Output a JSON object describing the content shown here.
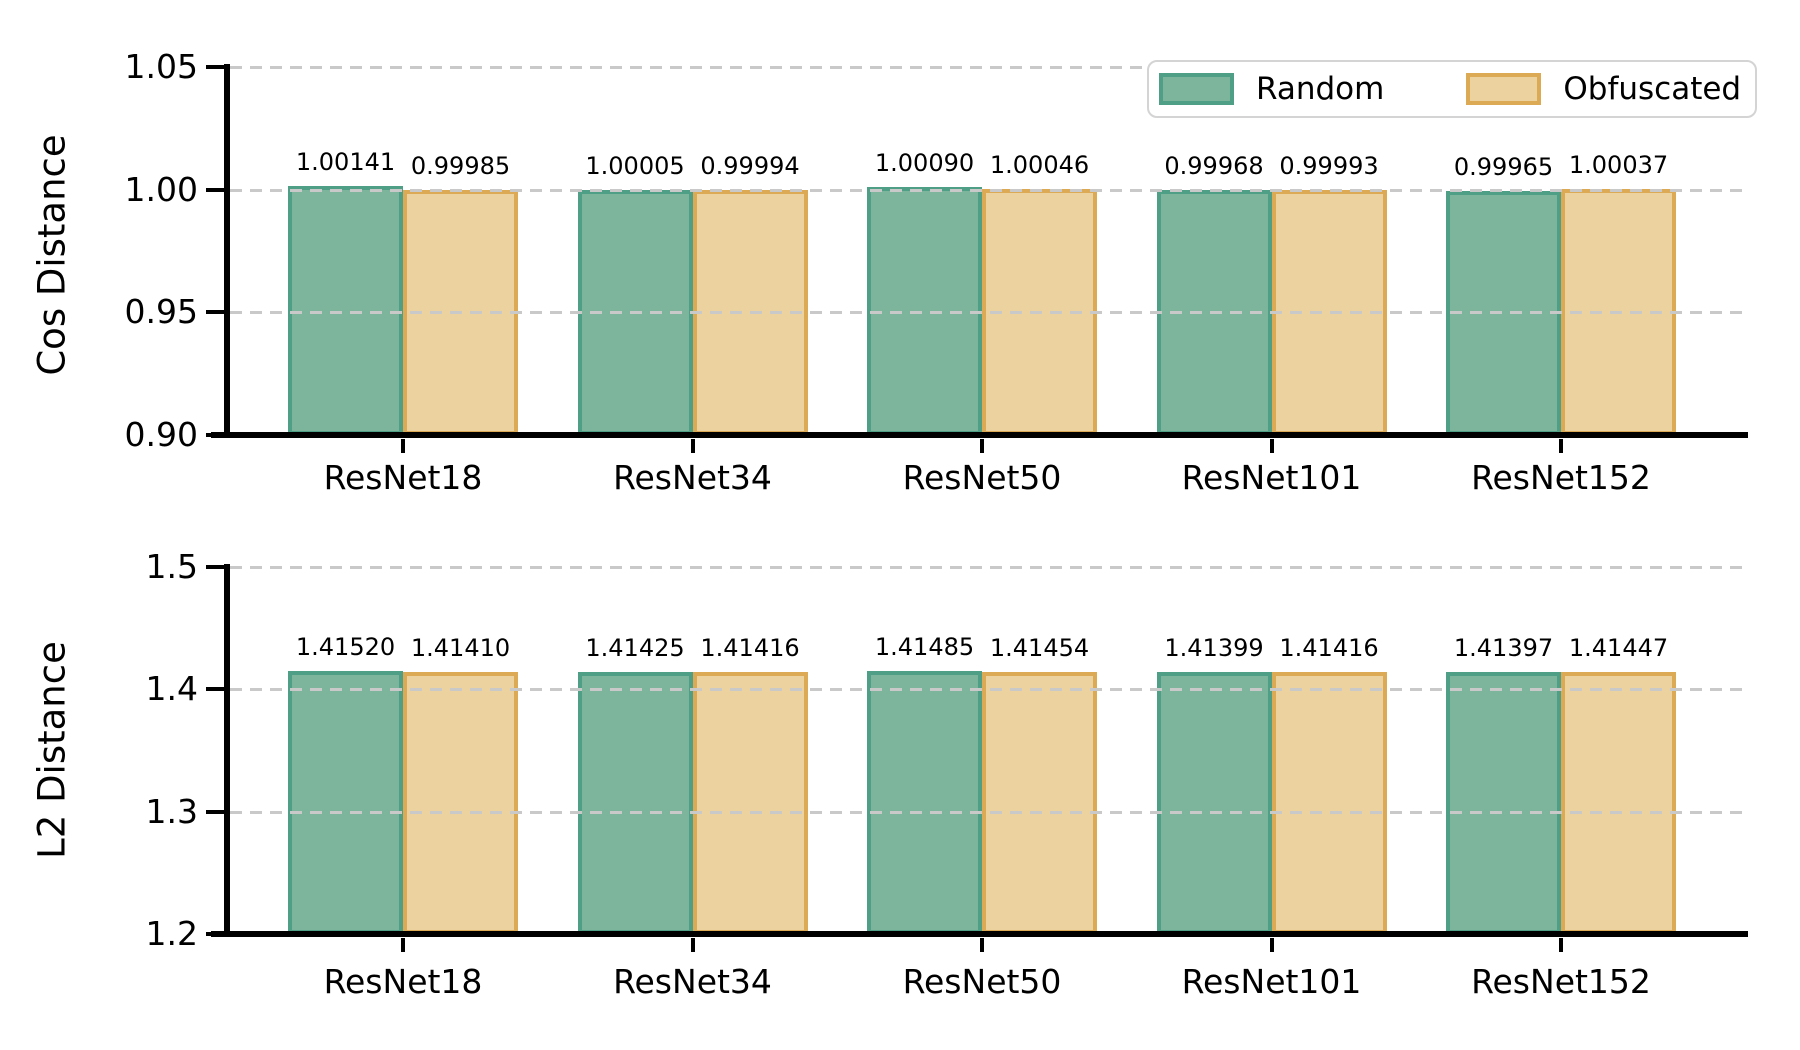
{
  "chart_data": [
    {
      "type": "bar",
      "panel": "cos-distance",
      "title": "",
      "xlabel": "",
      "ylabel": "Cos Distance",
      "ylim": [
        0.9,
        1.05
      ],
      "ytick_labels": [
        "1.05",
        "1.00",
        "0.95",
        "0.90"
      ],
      "ytick_values": [
        1.05,
        1.0,
        0.95,
        0.9
      ],
      "grid": "horizontal-dashed",
      "legend_position": "upper right",
      "categories": [
        "ResNet18",
        "ResNet34",
        "ResNet50",
        "ResNet101",
        "ResNet152"
      ],
      "series": [
        {
          "name": "Random",
          "fill": "#7cb59c",
          "edge": "#4e9f85",
          "values": [
            1.00141,
            1.00005,
            1.0009,
            0.99968,
            0.99965
          ],
          "labels": [
            "1.00141",
            "1.00005",
            "1.00090",
            "0.99968",
            "0.99965"
          ]
        },
        {
          "name": "Obfuscated",
          "fill": "#ecd29e",
          "edge": "#dcaa54",
          "values": [
            0.99985,
            0.99994,
            1.00046,
            0.99993,
            1.00037
          ],
          "labels": [
            "0.99985",
            "0.99994",
            "1.00046",
            "0.99993",
            "1.00037"
          ]
        }
      ]
    },
    {
      "type": "bar",
      "panel": "l2-distance",
      "title": "",
      "xlabel": "",
      "ylabel": "L2 Distance",
      "ylim": [
        1.2,
        1.5
      ],
      "ytick_labels": [
        "1.5",
        "1.4",
        "1.3",
        "1.2"
      ],
      "ytick_values": [
        1.5,
        1.4,
        1.3,
        1.2
      ],
      "grid": "horizontal-dashed",
      "legend_position": "none",
      "categories": [
        "ResNet18",
        "ResNet34",
        "ResNet50",
        "ResNet101",
        "ResNet152"
      ],
      "series": [
        {
          "name": "Random",
          "fill": "#7cb59c",
          "edge": "#4e9f85",
          "values": [
            1.4152,
            1.41425,
            1.41485,
            1.41399,
            1.41397
          ],
          "labels": [
            "1.41520",
            "1.41425",
            "1.41485",
            "1.41399",
            "1.41397"
          ]
        },
        {
          "name": "Obfuscated",
          "fill": "#ecd29e",
          "edge": "#dcaa54",
          "values": [
            1.4141,
            1.41416,
            1.41454,
            1.41416,
            1.41447
          ],
          "labels": [
            "1.41410",
            "1.41416",
            "1.41454",
            "1.41416",
            "1.41447"
          ]
        }
      ]
    }
  ],
  "colors": {
    "random_fill": "#7cb59c",
    "random_edge": "#4e9f85",
    "obfuscated_fill": "#ecd29e",
    "obfuscated_edge": "#dcaa54",
    "grid": "#c9c9c9",
    "axis": "#000000",
    "text": "#000000",
    "legend_border": "#d4d4d4",
    "background": "#ffffff"
  }
}
